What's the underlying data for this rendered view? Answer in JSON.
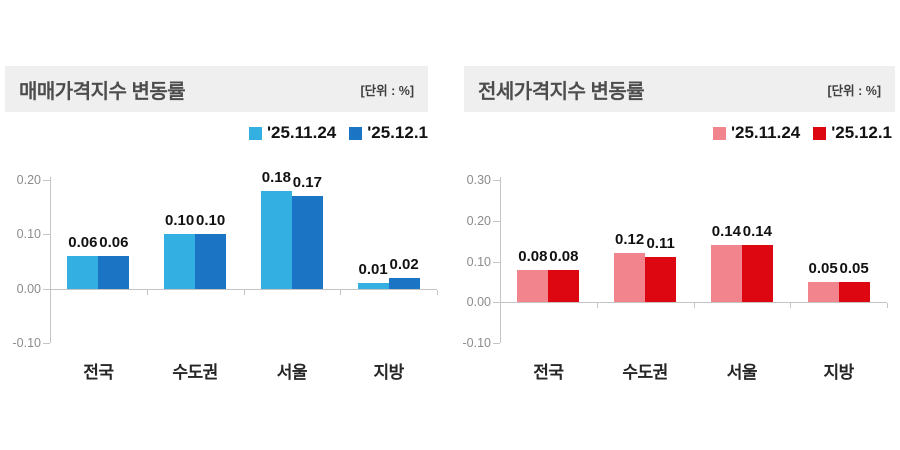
{
  "chart_data": [
    {
      "type": "bar",
      "title": "매매가격지수 변동률",
      "unit": "[단위 : %]",
      "categories": [
        "전국",
        "수도권",
        "서울",
        "지방"
      ],
      "series": [
        {
          "name": "'25.11.24",
          "color": "#33AFE1",
          "values": [
            0.06,
            0.1,
            0.18,
            0.01
          ]
        },
        {
          "name": "'25.12.1",
          "color": "#1B74C4",
          "values": [
            0.06,
            0.1,
            0.17,
            0.02
          ]
        }
      ],
      "ylim": [
        -0.1,
        0.2
      ],
      "yticks": [
        0.2,
        0.1,
        0.0,
        -0.1
      ],
      "grid": false,
      "legend_position": "top-right"
    },
    {
      "type": "bar",
      "title": "전세가격지수 변동률",
      "unit": "[단위 : %]",
      "categories": [
        "전국",
        "수도권",
        "서울",
        "지방"
      ],
      "series": [
        {
          "name": "'25.11.24",
          "color": "#F2848D",
          "values": [
            0.08,
            0.12,
            0.14,
            0.05
          ]
        },
        {
          "name": "'25.12.1",
          "color": "#DD0712",
          "values": [
            0.08,
            0.11,
            0.14,
            0.05
          ]
        }
      ],
      "ylim": [
        -0.1,
        0.3
      ],
      "yticks": [
        0.3,
        0.2,
        0.1,
        0.0,
        -0.1
      ],
      "grid": false,
      "legend_position": "top-right"
    }
  ]
}
